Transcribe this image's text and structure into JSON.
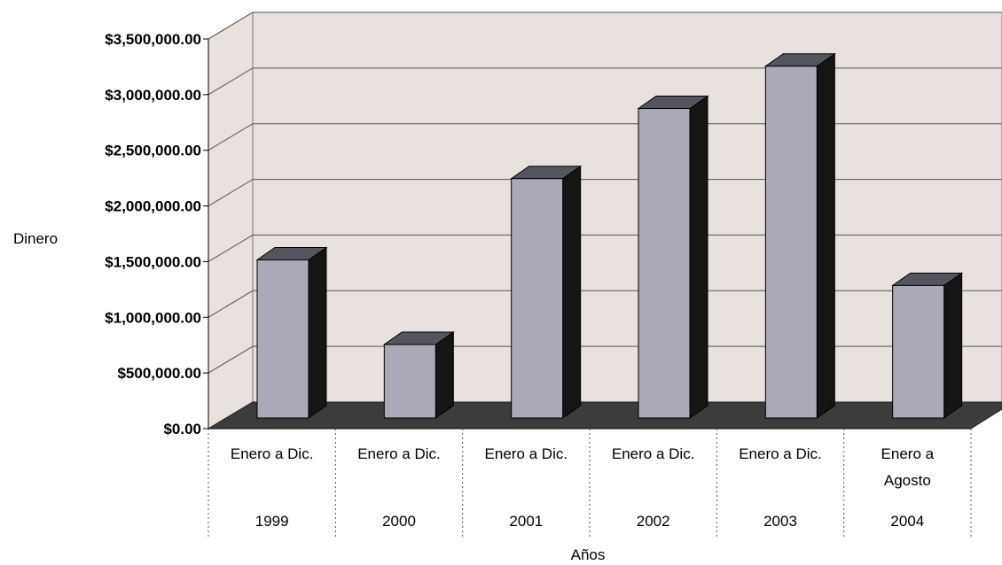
{
  "chart_data": {
    "type": "bar",
    "xlabel": "Años",
    "ylabel": "Dinero",
    "ylim": [
      0,
      3500000
    ],
    "y_tick_labels": [
      "$0.00",
      "$500,000.00",
      "$1,000,000.00",
      "$1,500,000.00",
      "$2,000,000.00",
      "$2,500,000.00",
      "$3,000,000.00",
      "$3,500,000.00"
    ],
    "y_ticks": [
      0,
      500000,
      1000000,
      1500000,
      2000000,
      2500000,
      3000000,
      3500000
    ],
    "categories": [
      {
        "period": "Enero a Dic.",
        "year": "1999"
      },
      {
        "period": "Enero a Dic.",
        "year": "2000"
      },
      {
        "period": "Enero a Dic.",
        "year": "2001"
      },
      {
        "period": "Enero a Dic.",
        "year": "2002"
      },
      {
        "period": "Enero a Dic.",
        "year": "2003"
      },
      {
        "period": "Enero a Agosto",
        "year": "2004"
      }
    ],
    "values": [
      1420000,
      660000,
      2150000,
      2780000,
      3160000,
      1190000
    ],
    "grid": true,
    "legend": "none",
    "colors": {
      "bar_front": "#a9a9b7",
      "bar_top": "#55555f",
      "bar_side": "#151515",
      "wall": "#e8e1dd",
      "floor": "#3c3c3c",
      "gridline": "#555555"
    }
  }
}
